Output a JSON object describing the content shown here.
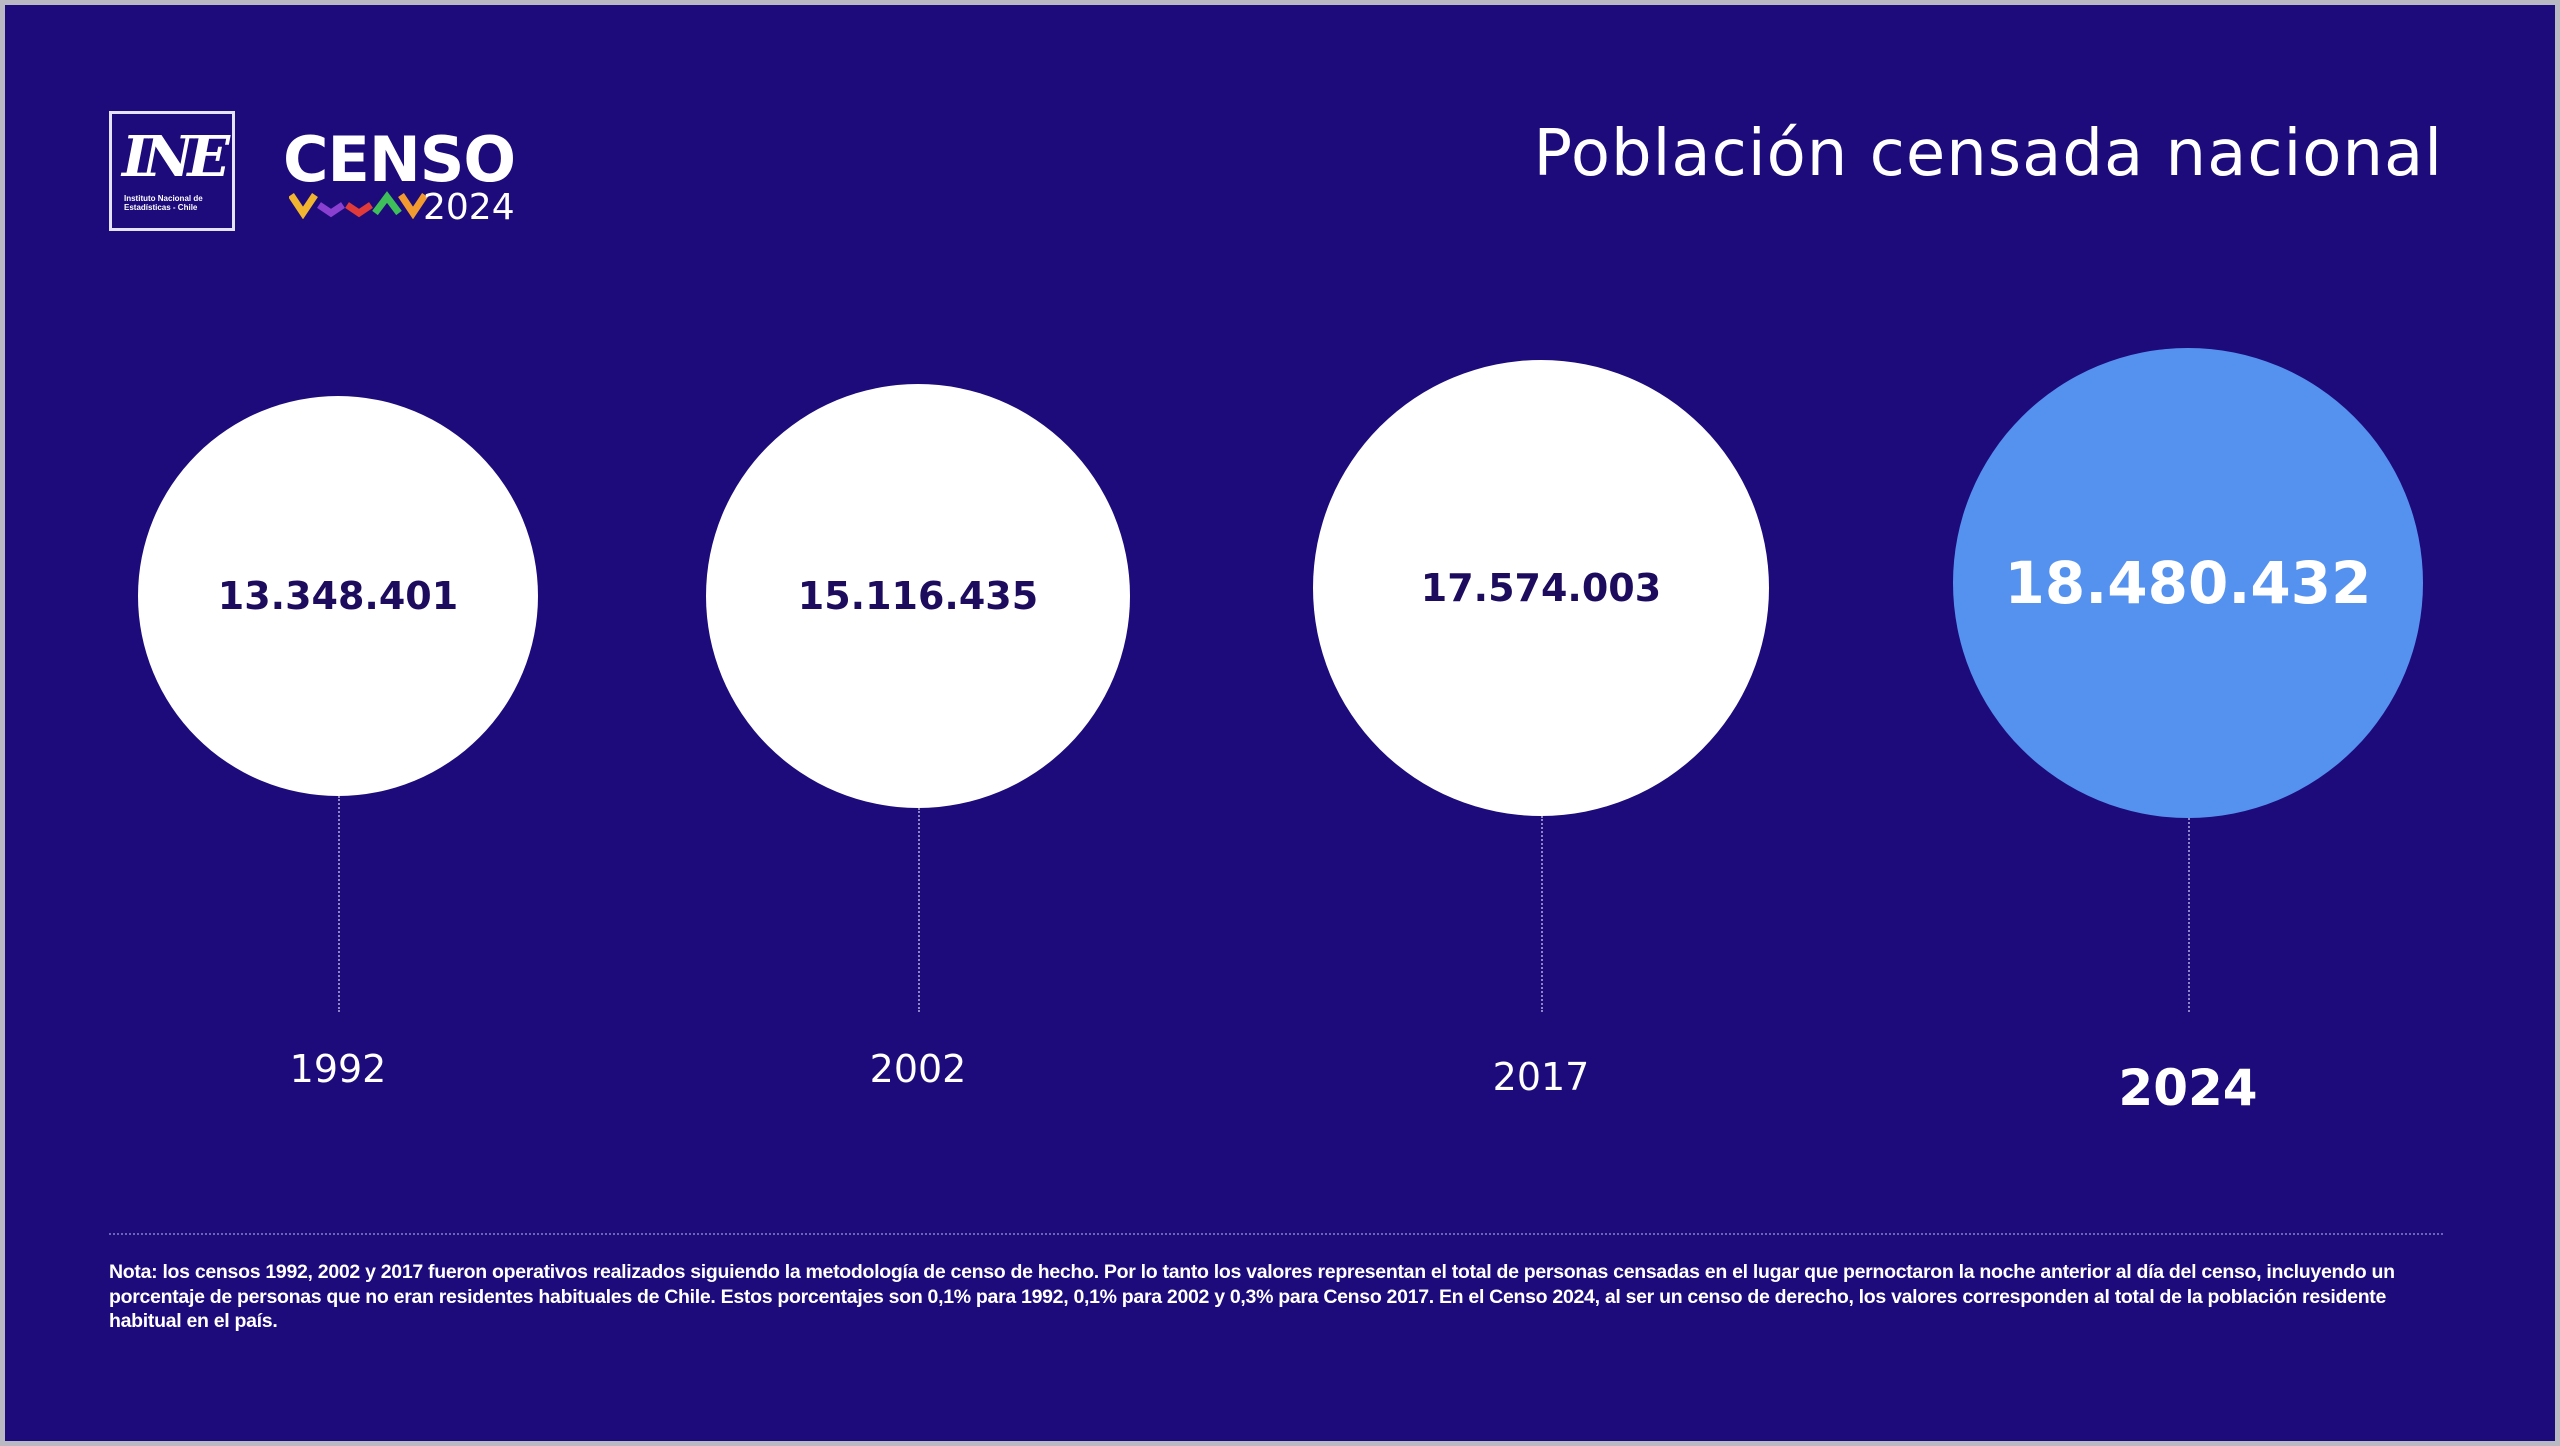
{
  "header": {
    "logo_ine_text": "INE",
    "logo_ine_subtitle": "Instituto Nacional de Estadísticas - Chile",
    "logo_censo": "CENSO",
    "logo_censo_year": "2024",
    "title": "Población censada nacional"
  },
  "colors": {
    "background": "#1d0b7c",
    "highlight": "#5592f0",
    "circle": "#ffffff"
  },
  "chart_data": {
    "type": "bubble",
    "title": "Población censada nacional",
    "categories": [
      "1992",
      "2002",
      "2017",
      "2024"
    ],
    "values": [
      13348401,
      15116435,
      17574003,
      18480432
    ],
    "labels": [
      "13.348.401",
      "15.116.435",
      "17.574.003",
      "18.480.432"
    ],
    "highlighted": "2024"
  },
  "note": "Nota: los censos 1992, 2002 y 2017 fueron operativos realizados siguiendo la metodología de censo de hecho. Por lo tanto los valores representan el total de personas censadas  en el lugar que pernoctaron la noche anterior al día del censo, incluyendo un porcentaje de personas que no eran residentes habituales de Chile. Estos porcentajes son 0,1%  para 1992, 0,1% para 2002 y 0,3% para Censo 2017. En el Censo 2024, al ser un censo de derecho, los valores corresponden al total de la población residente habitual en el país."
}
